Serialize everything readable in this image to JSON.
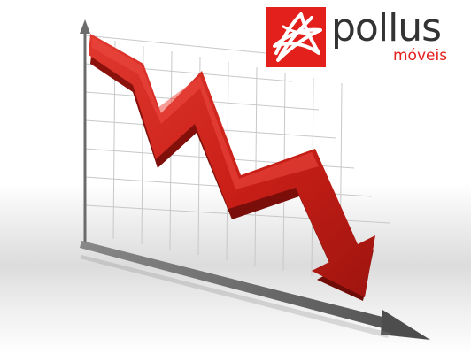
{
  "brand": {
    "name": "pollus",
    "subtitle": "móveis",
    "mark_icon": "star-scribble-icon",
    "colors": {
      "red": "#e3201b",
      "text": "#333333"
    }
  },
  "illustration": {
    "icon": "downward-trend-arrow-icon",
    "arrow_color": "#c91f17",
    "axis_color": "#6b6b6b"
  }
}
